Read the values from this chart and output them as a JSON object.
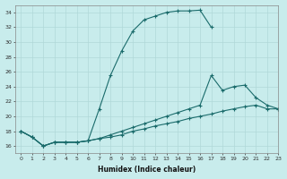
{
  "xlabel": "Humidex (Indice chaleur)",
  "bg_color": "#c8ecec",
  "line_color": "#1a6b6b",
  "grid_color": "#b0d8d8",
  "xlim": [
    -0.5,
    23
  ],
  "ylim": [
    15.0,
    35.0
  ],
  "yticks": [
    16,
    18,
    20,
    22,
    24,
    26,
    28,
    30,
    32,
    34
  ],
  "xticks": [
    0,
    1,
    2,
    3,
    4,
    5,
    6,
    7,
    8,
    9,
    10,
    11,
    12,
    13,
    14,
    15,
    16,
    17,
    18,
    19,
    20,
    21,
    22,
    23
  ],
  "line1_x": [
    0,
    1,
    2,
    3,
    4,
    5,
    6,
    7,
    8,
    9,
    10,
    11,
    12,
    13,
    14,
    15,
    16,
    17
  ],
  "line1_y": [
    18.0,
    17.2,
    16.0,
    16.5,
    16.5,
    16.5,
    16.7,
    21.0,
    25.5,
    28.8,
    31.5,
    33.0,
    33.5,
    34.0,
    34.2,
    34.2,
    34.3,
    32.0
  ],
  "line2_x": [
    0,
    1,
    2,
    3,
    4,
    5,
    6,
    7,
    8,
    9,
    10,
    11,
    12,
    13,
    14,
    15,
    16,
    17,
    18,
    19,
    20,
    21,
    22,
    23
  ],
  "line2_y": [
    18.0,
    17.2,
    16.0,
    16.5,
    16.5,
    16.5,
    16.7,
    17.0,
    17.5,
    18.0,
    18.5,
    19.0,
    19.5,
    20.0,
    20.5,
    21.0,
    21.5,
    25.5,
    23.5,
    24.0,
    24.2,
    22.5,
    21.5,
    21.0
  ],
  "line3_x": [
    0,
    1,
    2,
    3,
    4,
    5,
    6,
    7,
    8,
    9,
    10,
    11,
    12,
    13,
    14,
    15,
    16,
    17,
    18,
    19,
    20,
    21,
    22,
    23
  ],
  "line3_y": [
    18.0,
    17.2,
    16.0,
    16.5,
    16.5,
    16.5,
    16.7,
    17.0,
    17.2,
    17.5,
    18.0,
    18.3,
    18.7,
    19.0,
    19.3,
    19.7,
    20.0,
    20.3,
    20.7,
    21.0,
    21.3,
    21.5,
    21.0,
    21.0
  ]
}
